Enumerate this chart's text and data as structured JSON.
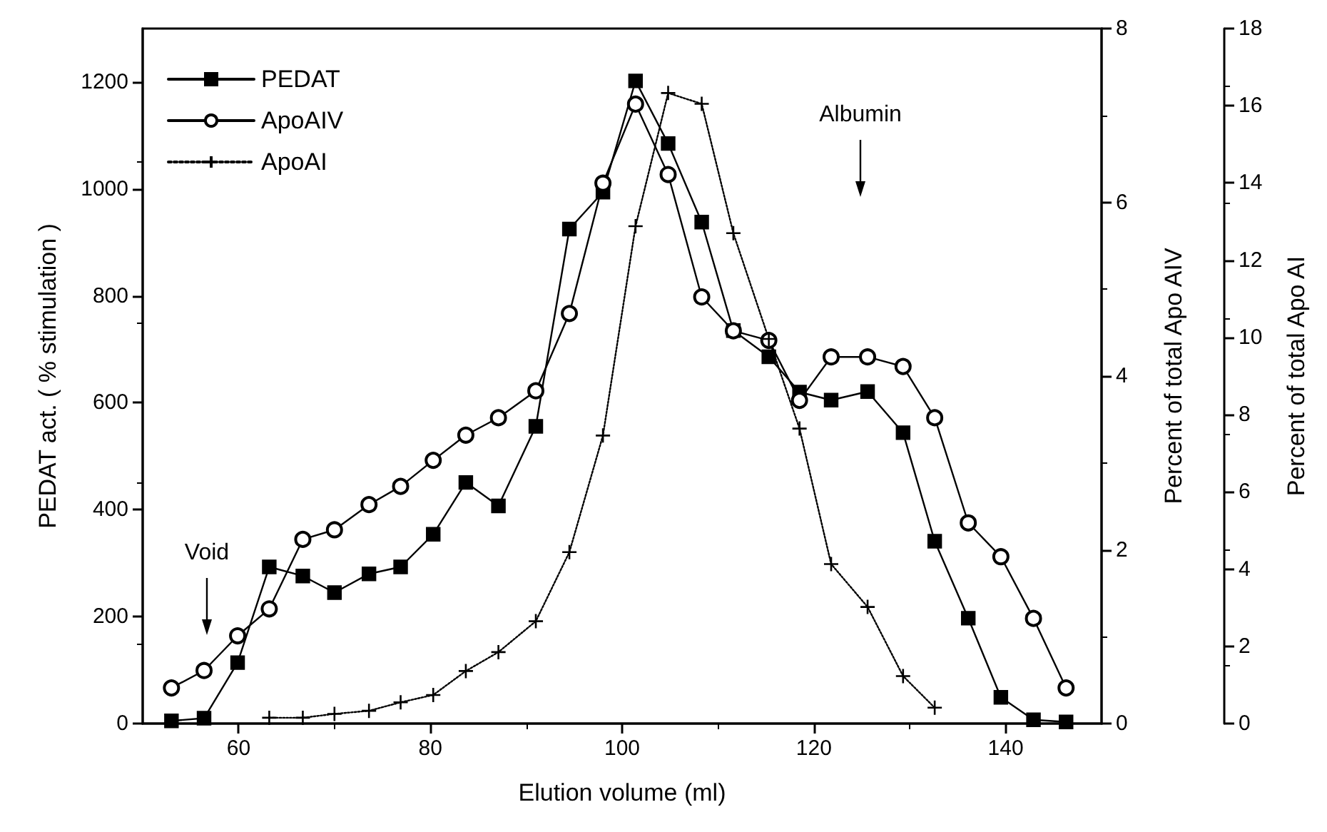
{
  "chart_data": {
    "type": "line",
    "xlabel": "Elution volume (ml)",
    "ylabel": "PEDAT act. ( % stimulation )",
    "y2label": "Percent of total Apo AIV",
    "y3label": "Percent of total Apo AI",
    "x": [
      53.0,
      56.4,
      59.9,
      63.2,
      66.7,
      70.0,
      73.6,
      76.9,
      80.3,
      83.7,
      87.1,
      91.0,
      94.5,
      98.0,
      101.4,
      104.8,
      108.3,
      111.6,
      115.3,
      118.5,
      121.8,
      125.6,
      129.3,
      132.6,
      136.1,
      139.5,
      142.9,
      146.3
    ],
    "series": [
      {
        "name": "PEDAT",
        "color": "#000000",
        "marker": "square",
        "line_style": "solid",
        "values": [
          5,
          10,
          114,
          293,
          276,
          245,
          280,
          293,
          354,
          451,
          407,
          556,
          925,
          994,
          1202,
          1085,
          938,
          735,
          686,
          620,
          605,
          621,
          544,
          341,
          197,
          49,
          7,
          3
        ]
      },
      {
        "name": "ApoAIV",
        "color": "#000000",
        "marker": "circle",
        "line_style": "solid",
        "axis": "y2",
        "values": [
          0.41,
          0.61,
          1.01,
          1.32,
          2.12,
          2.23,
          2.52,
          2.73,
          3.03,
          3.32,
          3.52,
          3.83,
          4.72,
          6.22,
          7.13,
          6.32,
          4.91,
          4.52,
          4.41,
          3.72,
          4.22,
          4.22,
          4.11,
          3.52,
          2.31,
          1.92,
          1.21,
          0.41
        ]
      },
      {
        "name": "ApoAI",
        "color": "#000000",
        "marker": "cross",
        "line_style": "dotted",
        "axis": "y3",
        "x": [
          63.2,
          66.7,
          70.0,
          73.6,
          76.9,
          80.3,
          83.7,
          87.1,
          91.0,
          94.5,
          98.0,
          101.4,
          104.8,
          108.3,
          111.6,
          115.3,
          118.5,
          121.8,
          125.6,
          129.3,
          132.6
        ],
        "values": [
          0.15,
          0.15,
          0.25,
          0.33,
          0.55,
          0.74,
          1.36,
          1.85,
          2.65,
          4.44,
          7.46,
          12.88,
          16.33,
          16.05,
          12.7,
          9.96,
          7.64,
          4.13,
          3.02,
          1.23,
          0.41
        ]
      }
    ],
    "xlim": [
      50,
      150
    ],
    "xticks": [
      60,
      80,
      100,
      120,
      140
    ],
    "ylim": [
      0,
      1300
    ],
    "yticks": [
      0,
      200,
      400,
      600,
      800,
      1000,
      1200
    ],
    "y2lim": [
      0,
      8
    ],
    "y2ticks": [
      0,
      2,
      4,
      6,
      8
    ],
    "y3lim": [
      0,
      18
    ],
    "y3ticks": [
      0,
      2,
      4,
      6,
      8,
      10,
      12,
      14,
      16,
      18
    ],
    "annotations": [
      "Void",
      "Albumin"
    ],
    "legend": "top left",
    "grid": false
  }
}
